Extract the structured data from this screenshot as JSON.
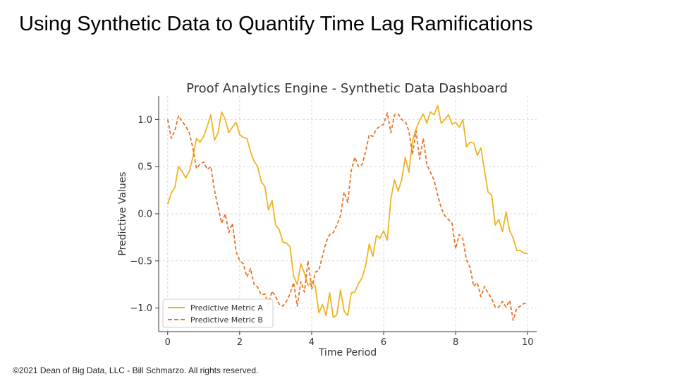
{
  "slide": {
    "title": "Using Synthetic Data to Quantify Time Lag Ramifications",
    "footer": "©2021 Dean of Big Data, LLC - Bill Schmarzo. All rights reserved."
  },
  "chart_data": {
    "type": "line",
    "title": "Proof Analytics Engine - Synthetic Data Dashboard",
    "xlabel": "Time Period",
    "ylabel": "Predictive Values",
    "xlim": [
      -0.25,
      10.25
    ],
    "ylim": [
      -1.25,
      1.25
    ],
    "xticks": [
      0,
      2,
      4,
      6,
      8,
      10
    ],
    "xtick_labels": [
      "0",
      "2",
      "4",
      "6",
      "8",
      "10"
    ],
    "yticks": [
      1.0,
      0.5,
      0.0,
      -0.5,
      -1.0
    ],
    "ytick_labels": [
      "1.0",
      "0.5",
      "0.0",
      "−0.5",
      "−1.0"
    ],
    "grid": true,
    "legend_position": "lower-left",
    "x": [
      0,
      0.1,
      0.2,
      0.3,
      0.4,
      0.5,
      0.6,
      0.7,
      0.8,
      0.9,
      1.0,
      1.1,
      1.2,
      1.3,
      1.4,
      1.5,
      1.6,
      1.7,
      1.8,
      1.9,
      2.0,
      2.1,
      2.2,
      2.3,
      2.4,
      2.5,
      2.6,
      2.7,
      2.8,
      2.9,
      3.0,
      3.1,
      3.2,
      3.3,
      3.4,
      3.5,
      3.6,
      3.7,
      3.8,
      3.9,
      4.0,
      4.1,
      4.2,
      4.3,
      4.4,
      4.5,
      4.6,
      4.7,
      4.8,
      4.9,
      5.0,
      5.1,
      5.2,
      5.3,
      5.4,
      5.5,
      5.6,
      5.7,
      5.8,
      5.9,
      6.0,
      6.1,
      6.2,
      6.3,
      6.4,
      6.5,
      6.6,
      6.7,
      6.8,
      6.9,
      7.0,
      7.1,
      7.2,
      7.3,
      7.4,
      7.5,
      7.6,
      7.7,
      7.8,
      7.9,
      8.0,
      8.1,
      8.2,
      8.3,
      8.4,
      8.5,
      8.6,
      8.7,
      8.8,
      8.9,
      9.0,
      9.1,
      9.2,
      9.3,
      9.4,
      9.5,
      9.6,
      9.7,
      9.8,
      9.9,
      10.0
    ],
    "series": [
      {
        "name": "Predictive Metric A",
        "color": "#f0b323",
        "style": "solid",
        "values": [
          0.1,
          0.22,
          0.28,
          0.5,
          0.45,
          0.38,
          0.45,
          0.6,
          0.8,
          0.76,
          0.82,
          0.93,
          1.05,
          0.78,
          0.86,
          1.08,
          1.0,
          0.86,
          0.92,
          0.97,
          0.84,
          0.81,
          0.8,
          0.66,
          0.56,
          0.5,
          0.34,
          0.29,
          0.04,
          0.14,
          -0.12,
          -0.17,
          -0.3,
          -0.31,
          -0.35,
          -0.66,
          -0.75,
          -0.53,
          -0.63,
          -0.76,
          -0.72,
          -0.77,
          -1.05,
          -0.96,
          -1.08,
          -0.84,
          -1.1,
          -1.07,
          -0.81,
          -1.03,
          -1.08,
          -0.84,
          -0.83,
          -0.74,
          -0.68,
          -0.55,
          -0.32,
          -0.45,
          -0.23,
          -0.26,
          -0.18,
          -0.28,
          0.16,
          0.36,
          0.24,
          0.36,
          0.6,
          0.44,
          0.77,
          0.9,
          0.99,
          1.06,
          0.96,
          1.08,
          1.05,
          1.15,
          0.96,
          1.0,
          1.05,
          0.95,
          0.97,
          0.92,
          1.0,
          0.71,
          0.76,
          0.75,
          0.62,
          0.7,
          0.46,
          0.23,
          0.2,
          -0.12,
          -0.06,
          -0.19,
          0.02,
          -0.18,
          -0.26,
          -0.39,
          -0.39,
          -0.42,
          -0.42
        ]
      },
      {
        "name": "Predictive Metric B",
        "color": "#e8742a",
        "style": "dashed",
        "values": [
          1.0,
          0.8,
          0.88,
          1.04,
          0.98,
          0.93,
          0.86,
          0.7,
          0.48,
          0.53,
          0.55,
          0.47,
          0.5,
          0.25,
          0.07,
          -0.1,
          0.0,
          -0.2,
          -0.1,
          -0.4,
          -0.5,
          -0.53,
          -0.67,
          -0.58,
          -0.75,
          -0.78,
          -0.86,
          -0.85,
          -0.96,
          -0.82,
          -0.88,
          -0.96,
          -0.98,
          -0.93,
          -0.85,
          -0.73,
          -0.98,
          -0.72,
          -0.83,
          -0.5,
          -0.8,
          -0.62,
          -0.6,
          -0.45,
          -0.3,
          -0.22,
          -0.2,
          -0.12,
          -0.02,
          0.23,
          0.12,
          0.46,
          0.6,
          0.5,
          0.52,
          0.66,
          0.84,
          0.82,
          0.9,
          0.93,
          0.95,
          1.07,
          0.86,
          1.05,
          1.06,
          1.0,
          0.98,
          0.88,
          0.63,
          0.88,
          0.58,
          0.8,
          0.52,
          0.44,
          0.36,
          0.2,
          0.06,
          -0.02,
          -0.06,
          -0.1,
          -0.37,
          -0.22,
          -0.27,
          -0.49,
          -0.57,
          -0.77,
          -0.73,
          -0.88,
          -0.77,
          -0.84,
          -0.9,
          -0.99,
          -0.99,
          -0.93,
          -0.99,
          -0.92,
          -1.13,
          -1.0,
          -0.98,
          -0.95,
          -0.95
        ]
      }
    ]
  }
}
